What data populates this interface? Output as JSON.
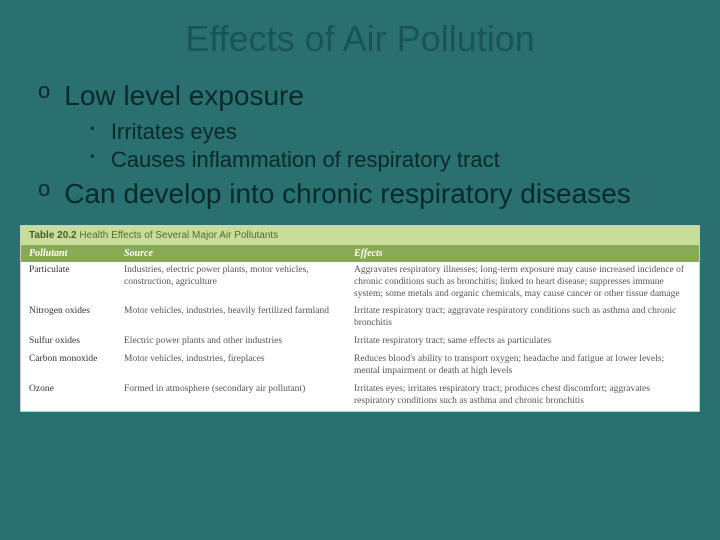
{
  "title": "Effects of Air Pollution",
  "bullets": {
    "b1": {
      "marker": "o",
      "text": "Low level exposure"
    },
    "sub1": {
      "marker": "•",
      "text": "Irritates eyes"
    },
    "sub2": {
      "marker": "•",
      "text": "Causes inflammation of respiratory tract"
    },
    "b2": {
      "marker": "o",
      "text": "Can develop into chronic respiratory diseases"
    }
  },
  "table": {
    "caption_prefix": "Table 20.2",
    "caption": "Health Effects of Several Major Air Pollutants",
    "headers": {
      "c1": "Pollutant",
      "c2": "Source",
      "c3": "Effects"
    },
    "rows": [
      {
        "pollutant": "Particulate",
        "source": "Industries, electric power plants, motor vehicles, construction, agriculture",
        "effects": "Aggravates respiratory illnesses; long-term exposure may cause increased incidence of chronic conditions such as bronchitis; linked to heart disease; suppresses immune system; some metals and organic chemicals, may cause cancer or other tissue damage"
      },
      {
        "pollutant": "Nitrogen oxides",
        "source": "Motor vehicles, industries, heavily fertilized farmland",
        "effects": "Irritate respiratory tract; aggravate respiratory conditions such as asthma and chronic bronchitis"
      },
      {
        "pollutant": "Sulfur oxides",
        "source": "Electric power plants and other industries",
        "effects": "Irritate respiratory tract; same effects as particulates"
      },
      {
        "pollutant": "Carbon monoxide",
        "source": "Motor vehicles, industries, fireplaces",
        "effects": "Reduces blood's ability to transport oxygen; headache and fatigue at lower levels; mental impairment or death at high levels"
      },
      {
        "pollutant": "Ozone",
        "source": "Formed in atmosphere (secondary air pollutant)",
        "effects": "Irritates eyes; irritates respiratory tract; produces chest discomfort; aggravates respiratory conditions such as asthma and chronic bronchitis"
      }
    ]
  },
  "colors": {
    "background": "#2a7070",
    "title": "#1a5555",
    "text": "#0a2a2a",
    "table_title_bg": "#c8dd9a",
    "table_header_bg": "#88aa55",
    "table_bg": "#ffffff"
  }
}
